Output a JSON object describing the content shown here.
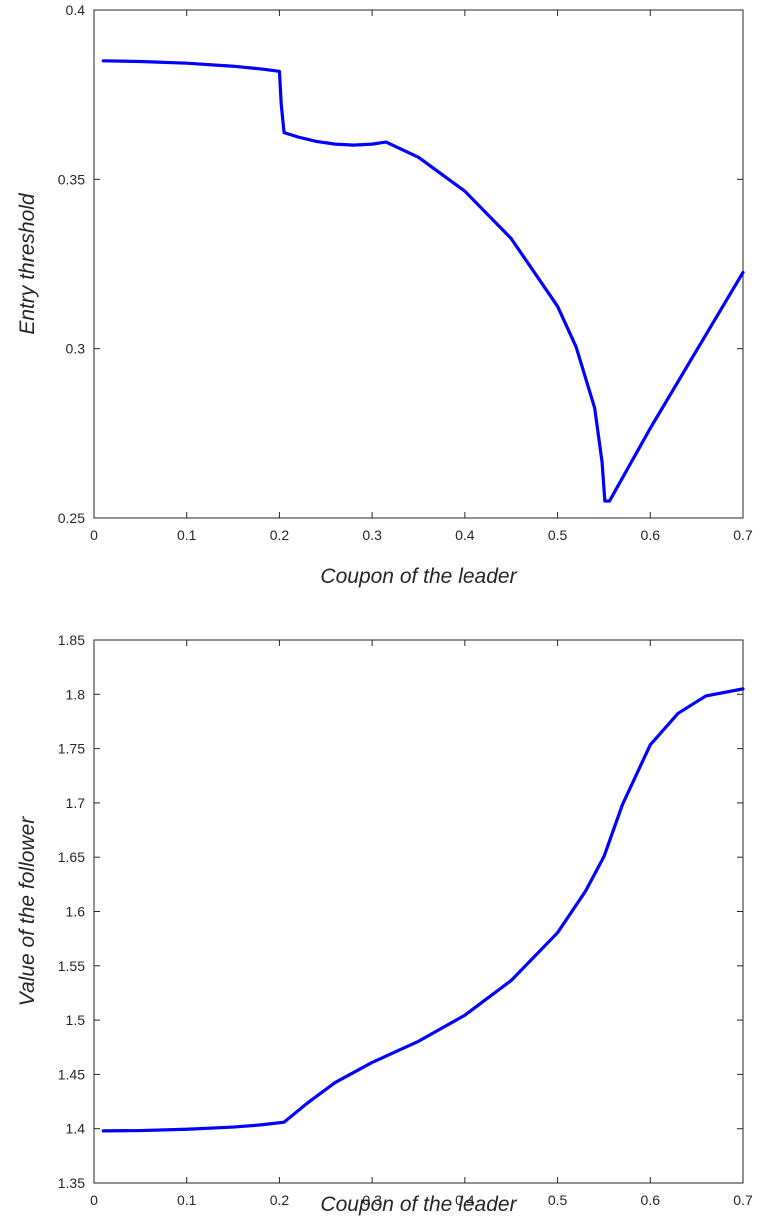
{
  "chart_data": [
    {
      "type": "line",
      "title": "",
      "xlabel": "Coupon of the leader",
      "ylabel": "Entry threshold",
      "xlim": [
        0,
        0.7
      ],
      "ylim": [
        0.25,
        0.4
      ],
      "xticks": [
        0,
        0.1,
        0.2,
        0.3,
        0.4,
        0.5,
        0.6,
        0.7
      ],
      "xtick_labels": [
        "0",
        "0.1",
        "0.2",
        "0.3",
        "0.4",
        "0.5",
        "0.6",
        "0.7"
      ],
      "yticks": [
        0.25,
        0.3,
        0.35,
        0.4
      ],
      "ytick_labels": [
        "0.25",
        "0.3",
        "0.35",
        "0.4"
      ],
      "grid": false,
      "line_color": "#0000ff",
      "series": [
        {
          "x": [
            0.01,
            0.05,
            0.1,
            0.15,
            0.18,
            0.2,
            0.202,
            0.205,
            0.22,
            0.24,
            0.26,
            0.28,
            0.3,
            0.315,
            0.35,
            0.4,
            0.45,
            0.5,
            0.52,
            0.54,
            0.548,
            0.551,
            0.556,
            0.6,
            0.65,
            0.7
          ],
          "y": [
            0.385,
            0.3848,
            0.3843,
            0.3834,
            0.3826,
            0.3819,
            0.372,
            0.3638,
            0.3625,
            0.3612,
            0.3604,
            0.3601,
            0.3604,
            0.361,
            0.3565,
            0.3465,
            0.3325,
            0.3125,
            0.3005,
            0.2825,
            0.2665,
            0.255,
            0.255,
            0.2765,
            0.2995,
            0.3225
          ]
        }
      ]
    },
    {
      "type": "line",
      "title": "",
      "xlabel": "Coupon of the leader",
      "ylabel": "Value of the follower",
      "xlim": [
        0,
        0.7
      ],
      "ylim": [
        1.35,
        1.85
      ],
      "xticks": [
        0,
        0.1,
        0.2,
        0.3,
        0.4,
        0.5,
        0.6,
        0.7
      ],
      "xtick_labels": [
        "0",
        "0.1",
        "0.2",
        "0.3",
        "0.4",
        "0.5",
        "0.6",
        "0.7"
      ],
      "yticks": [
        1.35,
        1.4,
        1.45,
        1.5,
        1.55,
        1.6,
        1.65,
        1.7,
        1.75,
        1.8,
        1.85
      ],
      "ytick_labels": [
        "1.35",
        "1.4",
        "1.45",
        "1.5",
        "1.55",
        "1.6",
        "1.65",
        "1.7",
        "1.75",
        "1.8",
        "1.85"
      ],
      "grid": false,
      "line_color": "#0000ff",
      "series": [
        {
          "x": [
            0.01,
            0.05,
            0.1,
            0.15,
            0.18,
            0.205,
            0.23,
            0.26,
            0.3,
            0.35,
            0.4,
            0.45,
            0.5,
            0.53,
            0.55,
            0.57,
            0.6,
            0.63,
            0.66,
            0.7
          ],
          "y": [
            1.398,
            1.3983,
            1.3995,
            1.4015,
            1.4035,
            1.406,
            1.4235,
            1.4425,
            1.461,
            1.4805,
            1.5045,
            1.5365,
            1.5805,
            1.6185,
            1.6505,
            1.6985,
            1.7535,
            1.7825,
            1.7985,
            1.805
          ]
        }
      ]
    }
  ]
}
